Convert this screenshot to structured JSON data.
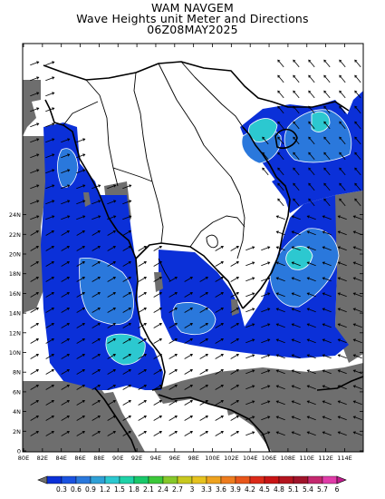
{
  "title": {
    "line1": "WAM NAVGEM",
    "line2": "Wave Heights unit Meter and Directions",
    "line3": "06Z08MAY2025"
  },
  "axes": {
    "lat_labels": [
      "0",
      "2N",
      "4N",
      "6N",
      "8N",
      "10N",
      "12N",
      "14N",
      "16N",
      "18N",
      "20N",
      "22N",
      "24N"
    ],
    "lon_labels": [
      "80E",
      "82E",
      "84E",
      "86E",
      "88E",
      "90E",
      "92E",
      "94E",
      "96E",
      "98E",
      "100E",
      "102E",
      "104E",
      "106E",
      "108E",
      "110E",
      "112E",
      "114E"
    ]
  },
  "colorbar": {
    "labels": [
      "0.3",
      "0.6",
      "0.9",
      "1.2",
      "1.5",
      "1.8",
      "2.1",
      "2.4",
      "2.7",
      "3",
      "3.3",
      "3.6",
      "3.9",
      "4.2",
      "4.5",
      "4.8",
      "5.1",
      "5.4",
      "5.7",
      "6"
    ],
    "colors": [
      "#6e6e6e",
      "#0b30d8",
      "#1a52e0",
      "#2a78dc",
      "#2fa0d6",
      "#2cc8d0",
      "#1fd2a8",
      "#18c86a",
      "#3cc83a",
      "#86c82a",
      "#c8c81e",
      "#e6c21e",
      "#eea21e",
      "#ee7c1e",
      "#e8561a",
      "#dc2a18",
      "#c81414",
      "#b4141e",
      "#a0142a",
      "#c4286e",
      "#e03ca8",
      "#c01c8c"
    ]
  },
  "colors": {
    "land": "#6e6e6e",
    "sea_low": "#0b30d8",
    "sea_mid": "#2a78dc",
    "sea_high": "#2cc8d0"
  }
}
